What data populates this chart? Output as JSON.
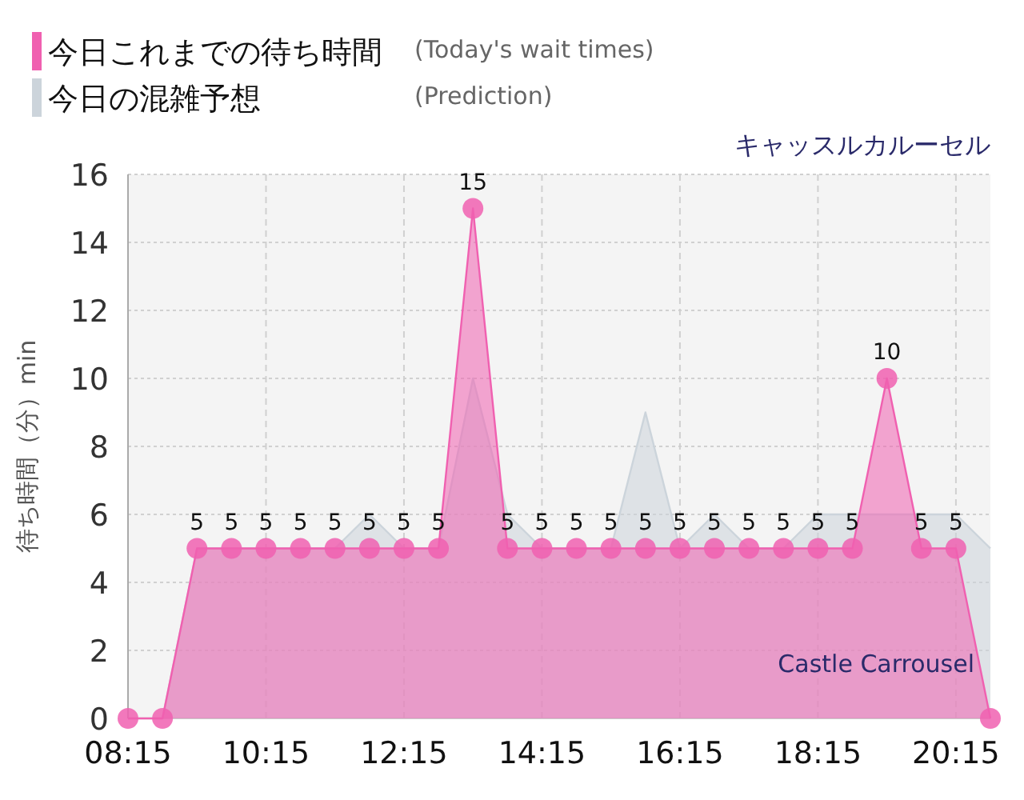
{
  "chart_data": {
    "type": "area",
    "title": "キャッスルカルーセル",
    "ylabel": "待ち時間（分）min",
    "annotations": [
      "(Today's wait times)",
      "(Prediction)",
      "Castle Carrousel"
    ],
    "x": [
      8.25,
      8.75,
      9.25,
      9.75,
      10.25,
      10.75,
      11.25,
      11.75,
      12.25,
      12.75,
      13.25,
      13.75,
      14.25,
      14.75,
      15.25,
      15.75,
      16.25,
      16.75,
      17.25,
      17.75,
      18.25,
      18.75,
      19.25,
      19.75,
      20.25,
      20.75
    ],
    "series": [
      {
        "name": "今日の混雑予想",
        "color": "#ccd4db",
        "marker": "none",
        "values": [
          0,
          0,
          5,
          5,
          5,
          5,
          5,
          6,
          5,
          5,
          10,
          6,
          5,
          5,
          5,
          9,
          5,
          6,
          5,
          5,
          6,
          6,
          6,
          6,
          6,
          5
        ]
      },
      {
        "name": "今日これまでの待ち時間",
        "color": "#f060b0",
        "marker": "circle",
        "values": [
          0,
          0,
          5,
          5,
          5,
          5,
          5,
          5,
          5,
          5,
          15,
          5,
          5,
          5,
          5,
          5,
          5,
          5,
          5,
          5,
          5,
          5,
          10,
          5,
          5,
          0
        ],
        "value_labels": [
          null,
          null,
          "5",
          "5",
          "5",
          "5",
          "5",
          "5",
          "5",
          "5",
          "15",
          "5",
          "5",
          "5",
          "5",
          "5",
          "5",
          "5",
          "5",
          "5",
          "5",
          "5",
          "10",
          "5",
          "5",
          null
        ]
      }
    ],
    "xlim": [
      8.25,
      20.75
    ],
    "xticks": [
      {
        "value": 8.25,
        "label": "08:15"
      },
      {
        "value": 10.25,
        "label": "10:15"
      },
      {
        "value": 12.25,
        "label": "12:15"
      },
      {
        "value": 14.25,
        "label": "14:15"
      },
      {
        "value": 16.25,
        "label": "16:15"
      },
      {
        "value": 18.25,
        "label": "18:15"
      },
      {
        "value": 20.25,
        "label": "20:15"
      }
    ],
    "ylim": [
      0,
      16
    ],
    "yticks": [
      0,
      2,
      4,
      6,
      8,
      10,
      12,
      14,
      16
    ],
    "grid": true,
    "legend": "top left"
  }
}
